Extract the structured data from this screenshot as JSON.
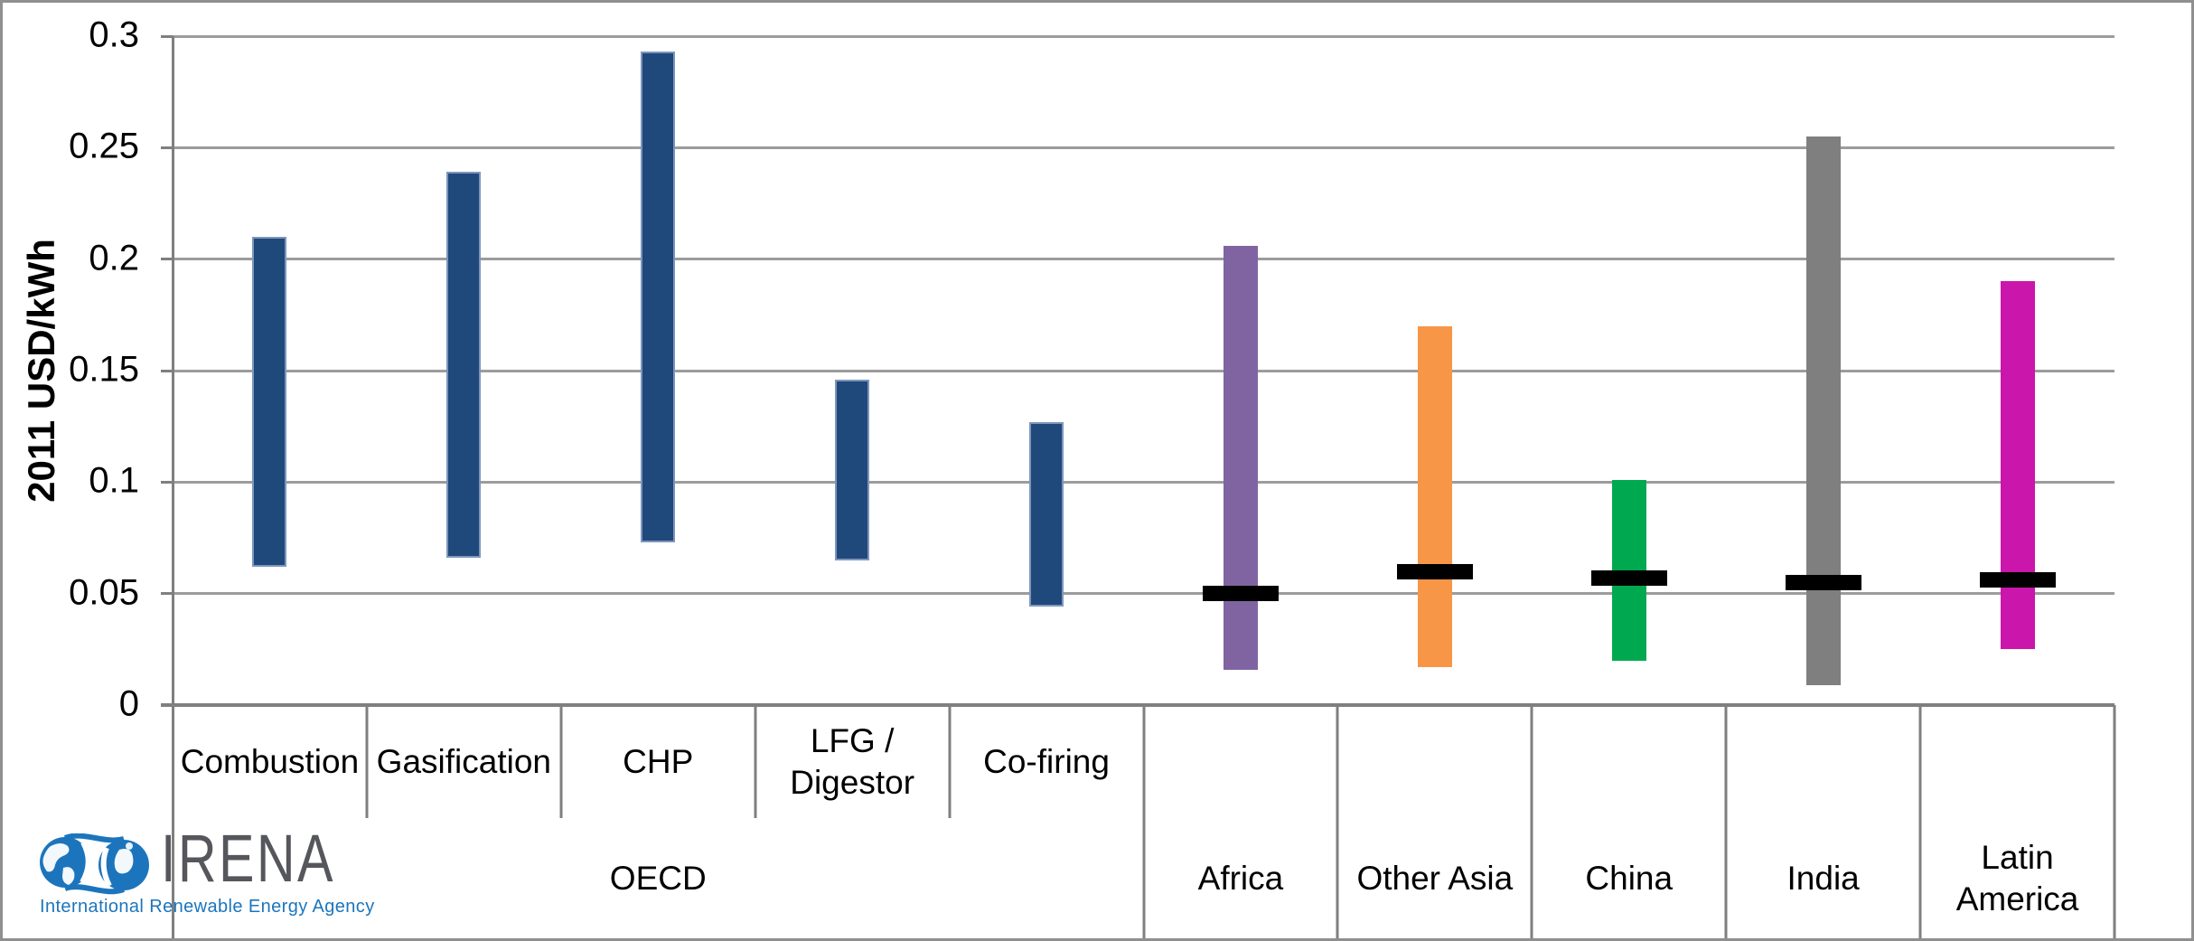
{
  "chart_data": {
    "type": "bar",
    "variant": "floating-range-bars-with-weighted-average-markers",
    "title": "",
    "ylabel": "2011 USD/kWh",
    "xlabel": "",
    "ylim": [
      0,
      0.3
    ],
    "grid": true,
    "legend": false,
    "yticks": [
      {
        "value": 0,
        "label": "0"
      },
      {
        "value": 0.05,
        "label": "0.05"
      },
      {
        "value": 0.1,
        "label": "0.1"
      },
      {
        "value": 0.15,
        "label": "0.15"
      },
      {
        "value": 0.2,
        "label": "0.2"
      },
      {
        "value": 0.25,
        "label": "0.25"
      },
      {
        "value": 0.3,
        "label": "0.3"
      }
    ],
    "marker_color": "#000000",
    "bars": [
      {
        "label": "Combustion",
        "group": "OECD",
        "low": 0.062,
        "high": 0.21,
        "average": null,
        "color": "#20497B",
        "border_color": "#7E96BB"
      },
      {
        "label": "Gasification",
        "group": "OECD",
        "low": 0.066,
        "high": 0.239,
        "average": null,
        "color": "#20497B",
        "border_color": "#7E96BB"
      },
      {
        "label": "CHP",
        "group": "OECD",
        "low": 0.073,
        "high": 0.293,
        "average": null,
        "color": "#20497B",
        "border_color": "#7E96BB"
      },
      {
        "label": "LFG /\nDigestor",
        "group": "OECD",
        "low": 0.065,
        "high": 0.146,
        "average": null,
        "color": "#20497B",
        "border_color": "#7E96BB"
      },
      {
        "label": "Co-firing",
        "group": "OECD",
        "low": 0.044,
        "high": 0.127,
        "average": null,
        "color": "#20497B",
        "border_color": "#7E96BB"
      },
      {
        "label": "",
        "group": "Africa",
        "low": 0.016,
        "high": 0.206,
        "average": 0.05,
        "color": "#8064A2",
        "border_color": null
      },
      {
        "label": "",
        "group": "Other Asia",
        "low": 0.017,
        "high": 0.17,
        "average": 0.06,
        "color": "#F79646",
        "border_color": null
      },
      {
        "label": "",
        "group": "China",
        "low": 0.02,
        "high": 0.101,
        "average": 0.057,
        "color": "#00A94F",
        "border_color": null
      },
      {
        "label": "",
        "group": "India",
        "low": 0.009,
        "high": 0.255,
        "average": 0.055,
        "color": "#7F7F7F",
        "border_color": null
      },
      {
        "label": "",
        "group": "Latin\nAmerica",
        "low": 0.025,
        "high": 0.19,
        "average": 0.056,
        "color": "#CA16AA",
        "border_color": null
      }
    ],
    "group_row": [
      {
        "label": "OECD",
        "span": 5
      },
      {
        "label": "Africa",
        "span": 1
      },
      {
        "label": "Other Asia",
        "span": 1
      },
      {
        "label": "China",
        "span": 1
      },
      {
        "label": "India",
        "span": 1
      },
      {
        "label": "Latin\nAmerica",
        "span": 1
      }
    ]
  },
  "logo": {
    "wordmark": "IRENA",
    "tagline": "International Renewable Energy Agency",
    "brand_blue": "#1C75BC",
    "wordmark_gray": "#56575C"
  }
}
